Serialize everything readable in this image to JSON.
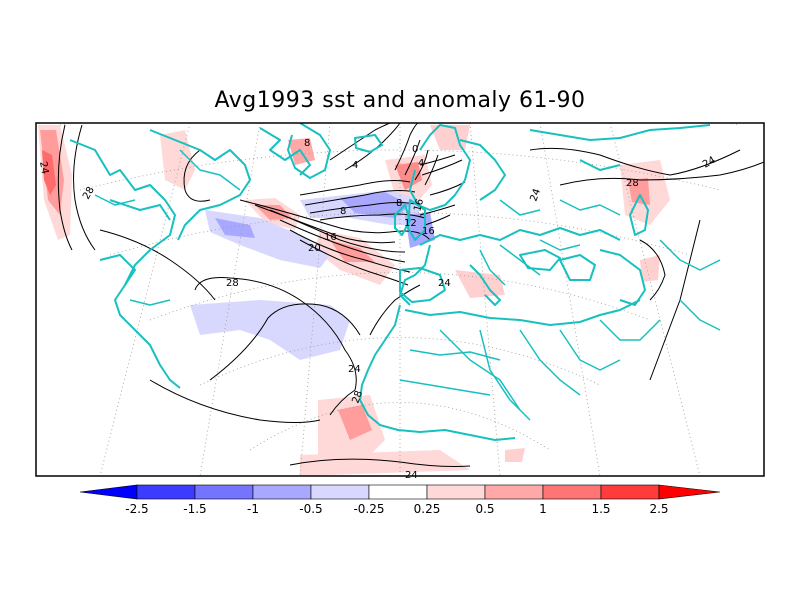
{
  "title": "Avg1993 sst and anomaly 61-90",
  "contour_labels": [
    "24",
    "28",
    "8",
    "4",
    "0",
    "4",
    "8",
    "8",
    "16",
    "20",
    "16",
    "12",
    "16",
    "24",
    "28",
    "24",
    "28",
    "24",
    "28",
    "24",
    "24"
  ],
  "colorbar": {
    "labels": [
      "-2.5",
      "-1.5",
      "-1",
      "-0.5",
      "-0.25",
      "0.25",
      "0.5",
      "1",
      "1.5",
      "2.5"
    ],
    "colors": [
      "#0000ff",
      "#3c3cff",
      "#7474ff",
      "#a8a8ff",
      "#d8d8ff",
      "#ffffff",
      "#ffd8d8",
      "#ffa8a8",
      "#ff7474",
      "#ff3c3c",
      "#ff0000"
    ]
  },
  "colors": {
    "coastline": "#18c0c0",
    "contour": "#000000",
    "graticule": "#9a9a9a"
  }
}
